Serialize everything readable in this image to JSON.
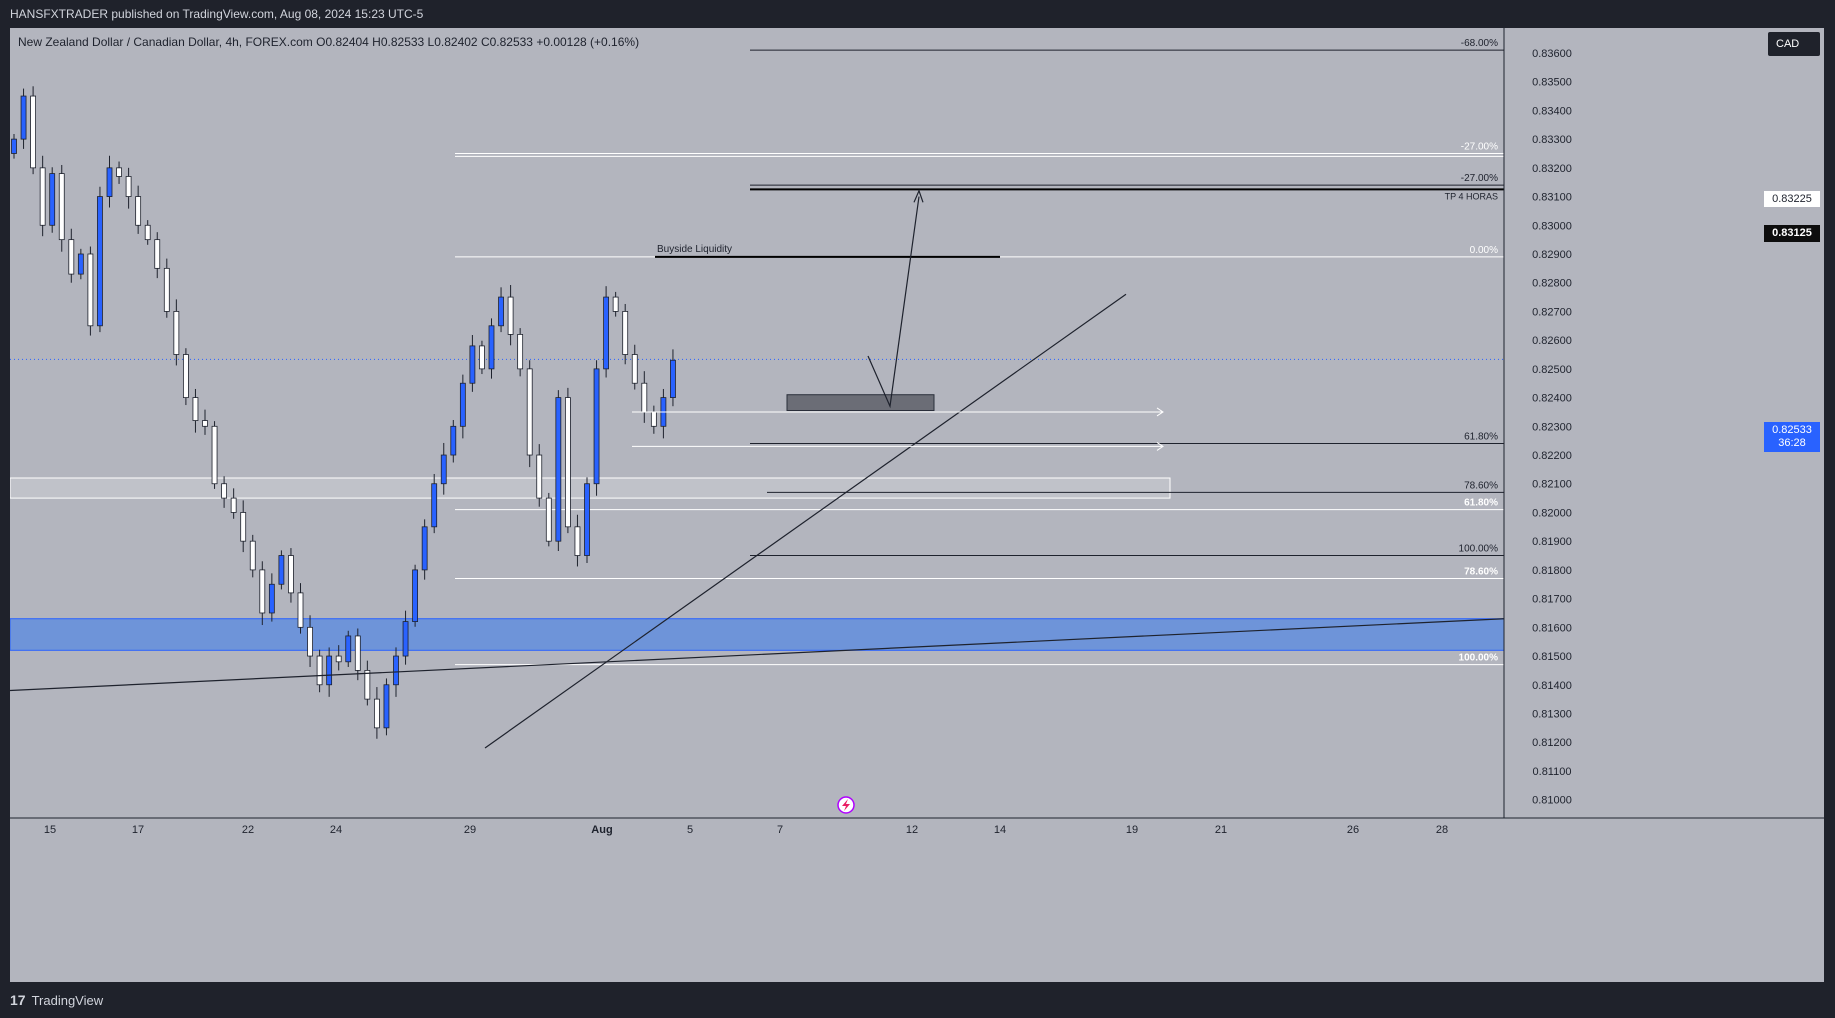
{
  "header": {
    "published_text": "HANSFXTRADER published on TradingView.com, Aug 08, 2024 15:23 UTC-5",
    "symbol_info": "New Zealand Dollar / Canadian Dollar, 4h, FOREX.com  O0.82404  H0.82533  L0.82402  C0.82533  +0.00128 (+0.16%)"
  },
  "price_axis": {
    "currency": "CAD",
    "current_price": "0.82533",
    "countdown": "36:28",
    "target_price_label": "0.83125",
    "white_price_label": "0.83225"
  },
  "footer": {
    "logo_text": "TradingView",
    "logo_mark": "17"
  },
  "colors": {
    "background": "#b3b5be",
    "up_candle": "#2962ff",
    "down_candle": "#ffffff",
    "candle_border": "#1e222d",
    "demand_zone": "#6e94d9"
  },
  "icons": {
    "bottom_center": "lightning-icon"
  },
  "chart_data": {
    "type": "candlestick",
    "title": "New Zealand Dollar / Canadian Dollar, 4h, FOREX.com",
    "ohlc": {
      "open": 0.82404,
      "high": 0.82533,
      "low": 0.82402,
      "close": 0.82533,
      "change": "+0.00128 (+0.16%)"
    },
    "ylim": [
      0.8095,
      0.8368
    ],
    "y_ticks": [
      "0.83600",
      "0.83500",
      "0.83400",
      "0.83300",
      "0.83200",
      "0.83100",
      "0.83000",
      "0.82900",
      "0.82800",
      "0.82700",
      "0.82600",
      "0.82500",
      "0.82400",
      "0.82300",
      "0.82200",
      "0.82100",
      "0.82000",
      "0.81900",
      "0.81800",
      "0.81700",
      "0.81600",
      "0.81500",
      "0.81400",
      "0.81300",
      "0.81200",
      "0.81100",
      "0.81000"
    ],
    "x_tick_labels": [
      "15",
      "17",
      "22",
      "24",
      "29",
      "Aug",
      "5",
      "7",
      "12",
      "14",
      "19",
      "21",
      "26",
      "28"
    ],
    "closes": [
      0.833,
      0.8345,
      0.832,
      0.83,
      0.8318,
      0.8295,
      0.8283,
      0.829,
      0.8265,
      0.831,
      0.832,
      0.8317,
      0.831,
      0.83,
      0.8295,
      0.8285,
      0.827,
      0.8255,
      0.824,
      0.8232,
      0.823,
      0.821,
      0.8205,
      0.82,
      0.819,
      0.818,
      0.8165,
      0.8175,
      0.8185,
      0.8172,
      0.816,
      0.815,
      0.814,
      0.815,
      0.8148,
      0.8157,
      0.8145,
      0.8135,
      0.8125,
      0.814,
      0.815,
      0.8162,
      0.818,
      0.8195,
      0.821,
      0.822,
      0.823,
      0.8245,
      0.8258,
      0.825,
      0.8265,
      0.8275,
      0.8262,
      0.825,
      0.822,
      0.8205,
      0.819,
      0.824,
      0.8195,
      0.8185,
      0.821,
      0.825,
      0.8275,
      0.827,
      0.8255,
      0.8245,
      0.8235,
      0.823,
      0.824,
      0.8253
    ],
    "annotations": {
      "buyside_liquidity": "Buyside Liquidity",
      "tp_label": "TP 4 HORAS",
      "fib_labels": {
        "m68": "-68.00%",
        "m27a": "-27.00%",
        "m27b": "-27.00%",
        "zero": "0.00%",
        "f618a": "61.80%",
        "f786a": "78.60%",
        "f618b": "61.80%",
        "f100a": "100.00%",
        "f786b": "78.60%",
        "f100b": "100.00%"
      }
    },
    "levels": {
      "fib_m68": 0.8361,
      "fib_m27_white": 0.8325,
      "fib_m27_dark": 0.8314,
      "tp": 0.83125,
      "zero": 0.8289,
      "f618": 0.8224,
      "f786": 0.8207,
      "f618_white": 0.8201,
      "f100": 0.8185,
      "f786_white": 0.8177,
      "f100_white": 0.8147,
      "demand_top": 0.8163,
      "demand_bottom": 0.8152,
      "supply_top": 0.8212,
      "supply_bottom": 0.8205,
      "small_box_top": 0.8241,
      "small_box_bottom": 0.82355
    }
  }
}
